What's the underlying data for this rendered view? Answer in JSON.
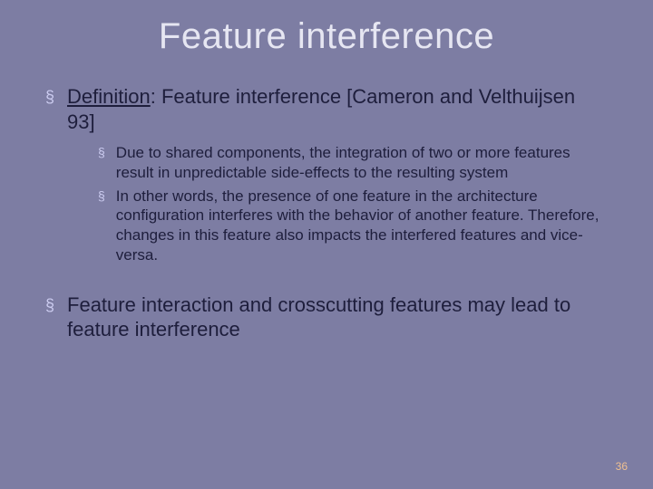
{
  "slide": {
    "background_color": "#7d7da3",
    "title_color": "#e6e6f2",
    "body_text_color": "#1e1e3c",
    "bullet_color": "#ccccf0",
    "page_number_color": "#f0c090",
    "title_fontsize": 40,
    "l1_fontsize": 22,
    "l2_fontsize": 17,
    "page_number_fontsize": 12,
    "title": "Feature interference",
    "page_number": "36",
    "bullets": [
      {
        "level": 1,
        "prefix_underlined": "Definition",
        "text": ": Feature interference [Cameron and Velthuijsen 93]",
        "children": [
          "Due to shared components, the integration of two or more features result in unpredictable side-effects to the resulting system",
          "In other words, the presence of one feature in the architecture configuration interferes with the behavior of another feature. Therefore, changes in this feature also impacts the interfered features and vice-versa."
        ]
      },
      {
        "level": 1,
        "text": "Feature interaction and crosscutting features may lead to feature interference",
        "children": []
      }
    ]
  }
}
